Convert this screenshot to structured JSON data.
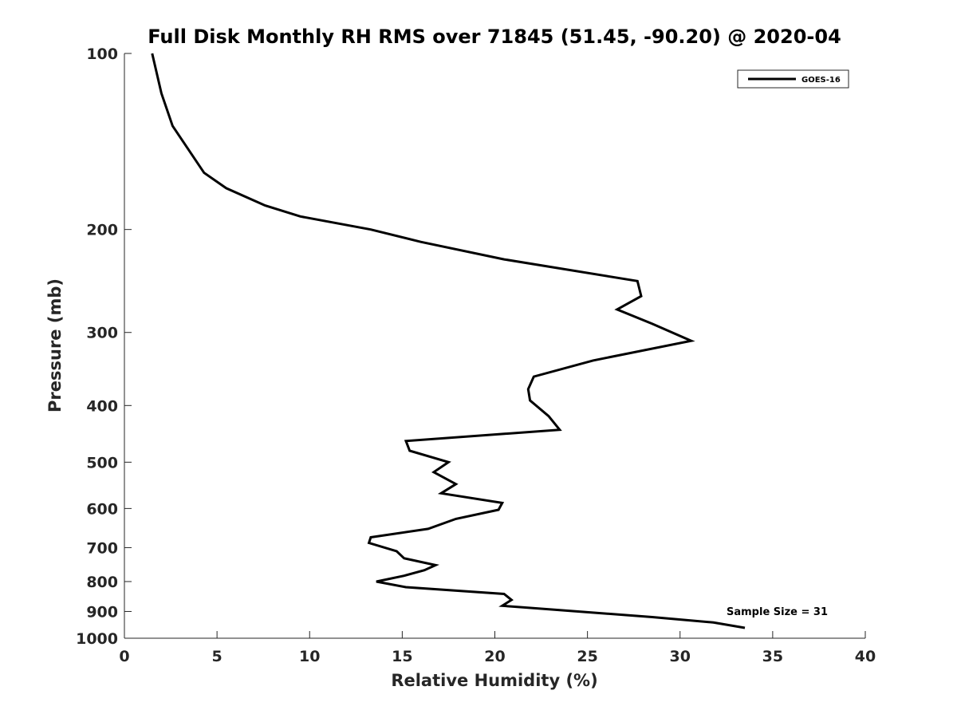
{
  "chart_data": {
    "type": "line",
    "title": "Full Disk Monthly RH RMS over 71845 (51.45, -90.20) @ 2020-04",
    "xlabel": "Relative Humidity (%)",
    "ylabel": "Pressure (mb)",
    "xlim": [
      0,
      40
    ],
    "ylim": [
      100,
      1000
    ],
    "yscale": "log",
    "y_reversed": true,
    "xticks": [
      0,
      5,
      10,
      15,
      20,
      25,
      30,
      35,
      40
    ],
    "yticks": [
      100,
      200,
      300,
      400,
      500,
      600,
      700,
      800,
      900,
      1000
    ],
    "grid": false,
    "legend_position": "top-right",
    "annotation": "Sample Size = 31",
    "series": [
      {
        "name": "GOES-16",
        "color": "#000000",
        "x": [
          1.5,
          2.0,
          2.6,
          4.3,
          5.5,
          7.6,
          9.5,
          13.3,
          16.0,
          20.5,
          27.7,
          27.9,
          26.6,
          28.5,
          30.6,
          25.3,
          22.1,
          21.8,
          21.9,
          22.9,
          23.5,
          15.2,
          15.4,
          17.5,
          16.7,
          17.9,
          17.1,
          20.4,
          20.2,
          17.9,
          16.4,
          13.3,
          13.2,
          14.7,
          15.1,
          16.8,
          16.2,
          15.1,
          13.6,
          15.2,
          20.5,
          20.9,
          20.4,
          24.5,
          28.5,
          31.8,
          33.5
        ],
        "y": [
          100,
          117,
          133,
          160,
          170,
          182,
          190,
          200,
          210,
          225,
          245,
          260,
          274,
          290,
          310,
          335,
          357,
          375,
          392,
          417,
          440,
          460,
          478,
          500,
          520,
          545,
          565,
          587,
          603,
          625,
          650,
          672,
          687,
          710,
          730,
          750,
          765,
          782,
          800,
          818,
          840,
          860,
          880,
          900,
          920,
          940,
          960
        ]
      }
    ]
  }
}
